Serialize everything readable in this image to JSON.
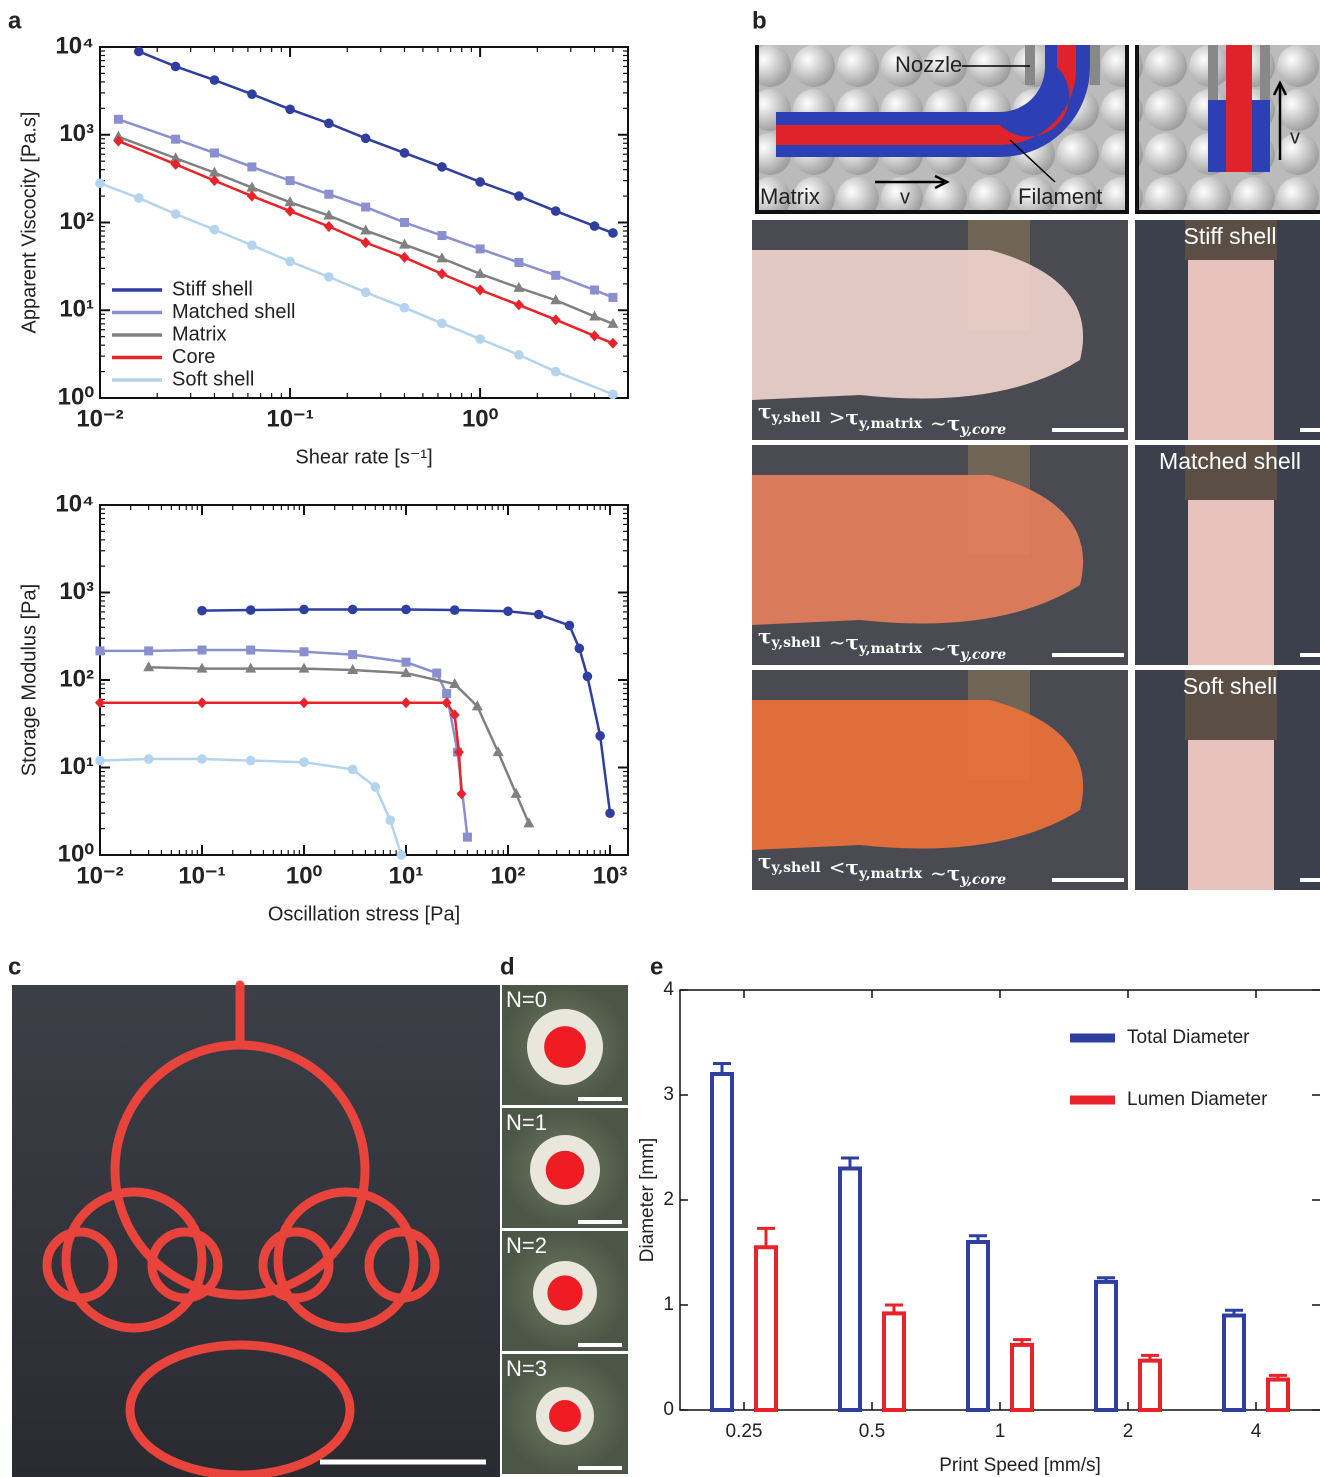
{
  "panel_labels": [
    "a",
    "b",
    "c",
    "d",
    "e"
  ],
  "chart_data": [
    {
      "type": "line",
      "xlabel": "Shear rate [s⁻¹]",
      "ylabel": "Apparent Viscocity [Pa.s]",
      "xscale": "log",
      "yscale": "log",
      "xlim": [
        0.01,
        6
      ],
      "ylim": [
        1,
        10000
      ],
      "xticks": [
        {
          "value": 0.01,
          "label": "10⁻²"
        },
        {
          "value": 0.1,
          "label": "10⁻¹"
        },
        {
          "value": 1,
          "label": "10⁰"
        }
      ],
      "yticks": [
        {
          "value": 1,
          "label": "10⁰"
        },
        {
          "value": 10,
          "label": "10¹"
        },
        {
          "value": 100,
          "label": "10²"
        },
        {
          "value": 1000,
          "label": "10³"
        },
        {
          "value": 10000,
          "label": "10⁴"
        }
      ],
      "legend": "lower left",
      "series": [
        {
          "name": "Stiff shell",
          "color": "#2e3fa0",
          "marker": "circle",
          "x": [
            0.016,
            0.025,
            0.04,
            0.063,
            0.1,
            0.16,
            0.25,
            0.4,
            0.63,
            1,
            1.6,
            2.5,
            4,
            5
          ],
          "values": [
            8900,
            6000,
            4200,
            2900,
            1950,
            1350,
            910,
            620,
            430,
            290,
            200,
            135,
            91,
            76
          ]
        },
        {
          "name": "Matched shell",
          "color": "#8a8fd0",
          "marker": "square",
          "x": [
            0.0125,
            0.025,
            0.04,
            0.063,
            0.1,
            0.16,
            0.25,
            0.4,
            0.63,
            1,
            1.6,
            2.5,
            4,
            5
          ],
          "values": [
            1500,
            890,
            620,
            430,
            300,
            210,
            150,
            100,
            71,
            50,
            35,
            25,
            17,
            14
          ]
        },
        {
          "name": "Matrix",
          "color": "#808080",
          "marker": "triangle",
          "x": [
            0.0125,
            0.025,
            0.04,
            0.063,
            0.1,
            0.16,
            0.25,
            0.4,
            0.63,
            1,
            1.6,
            2.5,
            4,
            5
          ],
          "values": [
            950,
            540,
            370,
            250,
            170,
            120,
            81,
            56,
            39,
            26,
            18,
            13,
            8.5,
            7
          ]
        },
        {
          "name": "Core",
          "color": "#e8232a",
          "marker": "diamond",
          "x": [
            0.0125,
            0.025,
            0.04,
            0.063,
            0.1,
            0.16,
            0.25,
            0.4,
            0.63,
            1,
            1.6,
            2.5,
            4,
            5
          ],
          "values": [
            850,
            460,
            300,
            200,
            135,
            90,
            59,
            40,
            26,
            17,
            11.5,
            7.8,
            5.1,
            4.2
          ]
        },
        {
          "name": "Soft shell",
          "color": "#b3d3ee",
          "marker": "circle",
          "x": [
            0.01,
            0.016,
            0.025,
            0.04,
            0.063,
            0.1,
            0.16,
            0.25,
            0.4,
            0.63,
            1,
            1.6,
            2.5,
            5
          ],
          "values": [
            280,
            190,
            125,
            83,
            55,
            36,
            24,
            16,
            10.7,
            7.1,
            4.7,
            3.1,
            2.0,
            1.1
          ]
        }
      ]
    },
    {
      "type": "line",
      "xlabel": "Oscillation stress [Pa]",
      "ylabel": "Storage Modulus [Pa]",
      "xscale": "log",
      "yscale": "log",
      "xlim": [
        0.01,
        1500
      ],
      "ylim": [
        1,
        10000
      ],
      "xticks": [
        {
          "value": 0.01,
          "label": "10⁻²"
        },
        {
          "value": 0.1,
          "label": "10⁻¹"
        },
        {
          "value": 1,
          "label": "10⁰"
        },
        {
          "value": 10,
          "label": "10¹"
        },
        {
          "value": 100,
          "label": "10²"
        },
        {
          "value": 1000,
          "label": "10³"
        }
      ],
      "yticks": [
        {
          "value": 1,
          "label": "10⁰"
        },
        {
          "value": 10,
          "label": "10¹"
        },
        {
          "value": 100,
          "label": "10²"
        },
        {
          "value": 1000,
          "label": "10³"
        },
        {
          "value": 10000,
          "label": "10⁴"
        }
      ],
      "series": [
        {
          "name": "Stiff shell",
          "color": "#2e3fa0",
          "marker": "circle",
          "x": [
            0.1,
            0.3,
            1,
            3,
            10,
            30,
            100,
            200,
            400,
            500,
            600,
            800,
            1000
          ],
          "values": [
            620,
            630,
            640,
            640,
            640,
            630,
            610,
            560,
            420,
            230,
            110,
            23,
            3
          ]
        },
        {
          "name": "Matched shell",
          "color": "#8a8fd0",
          "marker": "square",
          "x": [
            0.01,
            0.03,
            0.1,
            0.3,
            1,
            3,
            10,
            20,
            25,
            32,
            40
          ],
          "values": [
            215,
            215,
            220,
            220,
            210,
            195,
            160,
            120,
            70,
            15,
            1.6
          ]
        },
        {
          "name": "Matrix",
          "color": "#808080",
          "marker": "triangle",
          "x": [
            0.03,
            0.1,
            0.3,
            1,
            3,
            10,
            30,
            50,
            80,
            120,
            160
          ],
          "values": [
            140,
            135,
            135,
            135,
            130,
            120,
            90,
            50,
            15,
            5,
            2.3
          ]
        },
        {
          "name": "Core",
          "color": "#e8232a",
          "marker": "diamond",
          "x": [
            0.01,
            0.1,
            1,
            10,
            25,
            30,
            33,
            35
          ],
          "values": [
            55,
            55,
            55,
            55,
            55,
            40,
            15,
            5
          ]
        },
        {
          "name": "Soft shell",
          "color": "#b3d3ee",
          "marker": "circle",
          "x": [
            0.01,
            0.03,
            0.1,
            0.3,
            1,
            3,
            5,
            7,
            9
          ],
          "values": [
            12,
            12.5,
            12.5,
            12,
            11.5,
            9.5,
            6,
            2.5,
            1
          ]
        }
      ]
    },
    {
      "type": "bar",
      "xlabel": "Print Speed [mm/s]",
      "ylabel": "Diameter [mm]",
      "categories": [
        "0.25",
        "0.5",
        "1",
        "2",
        "4"
      ],
      "ylim": [
        0,
        4
      ],
      "yticks": [
        0,
        1,
        2,
        3,
        4
      ],
      "legend": "upper right",
      "series": [
        {
          "name": "Total Diameter",
          "color": "#2e3fa0",
          "values": [
            3.2,
            2.3,
            1.6,
            1.22,
            0.9
          ],
          "errors": [
            0.1,
            0.1,
            0.06,
            0.04,
            0.05
          ]
        },
        {
          "name": "Lumen Diameter",
          "color": "#e8232a",
          "values": [
            1.55,
            0.92,
            0.62,
            0.47,
            0.29
          ],
          "errors": [
            0.18,
            0.08,
            0.05,
            0.05,
            0.04
          ]
        }
      ]
    }
  ],
  "schematic": {
    "nozzle": "Nozzle",
    "matrix": "Matrix",
    "filament": "Filament",
    "velocity": "v"
  },
  "photos_b": {
    "symbol": "τ",
    "row_labels": [
      "Stiff shell",
      "Matched shell",
      "Soft shell"
    ],
    "equations": [
      [
        "y,shell",
        ">",
        "y,matrix",
        "~",
        "y,core"
      ],
      [
        "y,shell",
        "~",
        "y,matrix",
        "~",
        "y,core"
      ],
      [
        "y,shell",
        "<",
        "y,matrix",
        "~",
        "y,core"
      ]
    ]
  },
  "photos_d": [
    "N=0",
    "N=1",
    "N=2",
    "N=3"
  ]
}
